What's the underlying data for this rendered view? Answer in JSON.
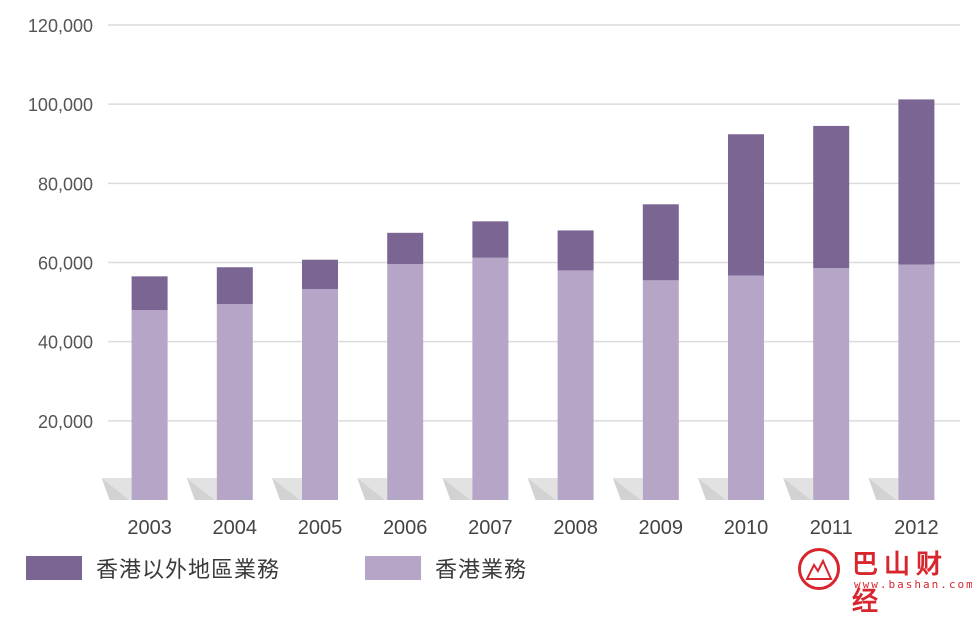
{
  "chart_data": {
    "type": "bar",
    "stacked": true,
    "categories": [
      "2003",
      "2004",
      "2005",
      "2006",
      "2007",
      "2008",
      "2009",
      "2010",
      "2011",
      "2012"
    ],
    "series": [
      {
        "name": "香港業務",
        "color": "#b5a5c6",
        "values": [
          48000,
          49500,
          53300,
          59600,
          61200,
          58000,
          55500,
          56700,
          58600,
          59500
        ]
      },
      {
        "name": "香港以外地區業務",
        "color": "#7b6593",
        "values": [
          8500,
          9300,
          7400,
          7900,
          9200,
          10100,
          19200,
          35700,
          35900,
          41700
        ]
      }
    ],
    "ylim": [
      0,
      120000
    ],
    "yticks": [
      20000,
      40000,
      60000,
      80000,
      100000,
      120000
    ],
    "ytick_labels": [
      "20,000",
      "40,000",
      "60,000",
      "80,000",
      "100,000",
      "120,000"
    ],
    "grid": true,
    "legend_position": "bottom"
  },
  "legend": {
    "items": [
      {
        "label": "香港以外地區業務",
        "color": "#7b6593"
      },
      {
        "label": "香港業務",
        "color": "#b5a5c6"
      }
    ]
  },
  "watermark": {
    "title": "巴山财经",
    "url": "www.bashan.com"
  }
}
